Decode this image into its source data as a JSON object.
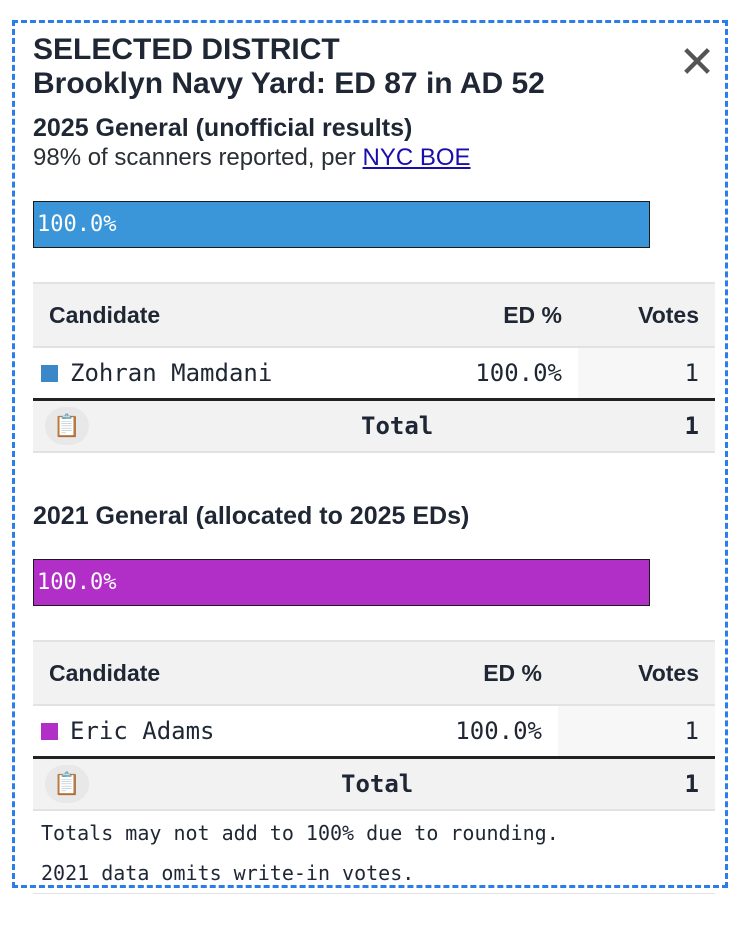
{
  "header": {
    "title": "SELECTED DISTRICT",
    "district": "Brooklyn Navy Yard: ED 87 in AD 52",
    "close_label": "✕"
  },
  "race2025": {
    "heading": "2025 General (unofficial results)",
    "sub_prefix": "98% of scanners reported, per ",
    "sub_link": "NYC BOE",
    "bar_label": "100.0%",
    "bar_fraction": 1.0,
    "bar_color": "#3a95d9",
    "columns": [
      "Candidate",
      "ED %",
      "Votes"
    ],
    "rows": [
      {
        "candidate": "Zohran Mamdani",
        "pct": "100.0%",
        "votes": "1",
        "color": "#3a88c8"
      }
    ],
    "total_label": "Total",
    "total_votes": "1",
    "copy_icon": "clipboard-icon"
  },
  "race2021": {
    "heading": "2021 General (allocated to 2025 EDs)",
    "bar_label": "100.0%",
    "bar_fraction": 1.0,
    "bar_color": "#b12fc6",
    "columns": [
      "Candidate",
      "ED %",
      "Votes"
    ],
    "rows": [
      {
        "candidate": "Eric Adams",
        "pct": "100.0%",
        "votes": "1",
        "color": "#b12fc6"
      }
    ],
    "total_label": "Total",
    "total_votes": "1",
    "copy_icon": "clipboard-icon"
  },
  "notes": [
    "Totals may not add to 100% due to rounding.",
    "2021 data omits write-in votes."
  ]
}
